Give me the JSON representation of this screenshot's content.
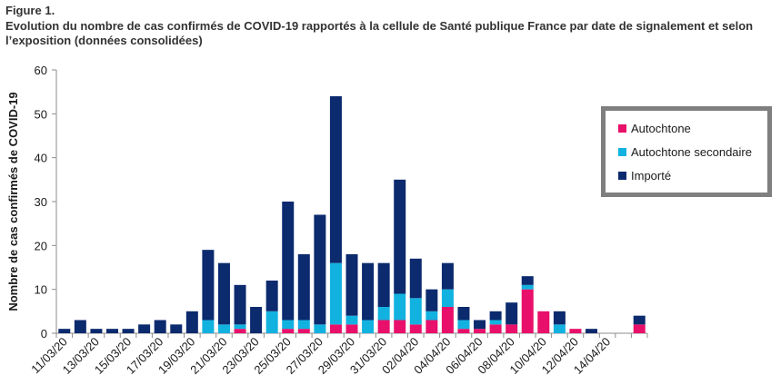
{
  "figure_label": "Figure 1.",
  "caption": "Evolution du nombre de cas confirmés de COVID-19 rapportés à la cellule de Santé publique France par date de signalement  et  selon l’exposition (données consolidées)",
  "colors": {
    "autochtone": "#e8106a",
    "autochtone_secondaire": "#12b2e0",
    "importe": "#0c2a6e",
    "legend_border": "#7f7f7f",
    "axis": "#8c8c8c"
  },
  "chart_data": {
    "type": "bar",
    "stacked": true,
    "ylabel": "Nombre de cas confirmés de COVID-19",
    "xlabel": "",
    "ylim": [
      0,
      60
    ],
    "yticks": [
      0,
      10,
      20,
      30,
      40,
      50,
      60
    ],
    "grid": false,
    "legend_position": "right",
    "categories": [
      "11/03/20",
      "12/03/20",
      "13/03/20",
      "14/03/20",
      "15/03/20",
      "16/03/20",
      "17/03/20",
      "18/03/20",
      "19/03/20",
      "20/03/20",
      "21/03/20",
      "22/03/20",
      "23/03/20",
      "24/03/20",
      "25/03/20",
      "26/03/20",
      "27/03/20",
      "28/03/20",
      "29/03/20",
      "30/03/20",
      "31/03/20",
      "01/04/20",
      "02/04/20",
      "03/04/20",
      "04/04/20",
      "05/04/20",
      "06/04/20",
      "07/04/20",
      "08/04/20",
      "09/04/20",
      "10/04/20",
      "11/04/20",
      "12/04/20",
      "13/04/20",
      "14/04/20",
      "15/04/20",
      "16/04/20"
    ],
    "tick_labels": [
      "11/03/20",
      "13/03/20",
      "15/03/20",
      "17/03/20",
      "19/03/20",
      "21/03/20",
      "23/03/20",
      "25/03/20",
      "27/03/20",
      "29/03/20",
      "31/03/20",
      "02/04/20",
      "04/04/20",
      "06/04/20",
      "08/04/20",
      "10/04/20",
      "12/04/20",
      "14/04/20"
    ],
    "series": [
      {
        "name": "Autochtone",
        "values": [
          0,
          0,
          0,
          0,
          0,
          0,
          0,
          0,
          0,
          0,
          0,
          1,
          0,
          0,
          1,
          1,
          0,
          2,
          2,
          0,
          3,
          3,
          2,
          3,
          6,
          1,
          1,
          2,
          2,
          10,
          5,
          0,
          1,
          0,
          0,
          0,
          2
        ]
      },
      {
        "name": "Autochtone secondaire",
        "values": [
          0,
          0,
          0,
          0,
          0,
          0,
          0,
          0,
          0,
          3,
          2,
          1,
          0,
          5,
          2,
          2,
          2,
          14,
          2,
          3,
          3,
          6,
          6,
          2,
          4,
          2,
          0,
          1,
          0,
          1,
          0,
          2,
          0,
          0,
          0,
          0,
          0
        ]
      },
      {
        "name": "Importé",
        "values": [
          1,
          3,
          1,
          1,
          1,
          2,
          3,
          2,
          5,
          16,
          14,
          9,
          6,
          7,
          27,
          15,
          25,
          38,
          14,
          13,
          10,
          26,
          9,
          5,
          6,
          3,
          2,
          2,
          5,
          2,
          0,
          3,
          0,
          1,
          0,
          0,
          2
        ]
      }
    ]
  }
}
